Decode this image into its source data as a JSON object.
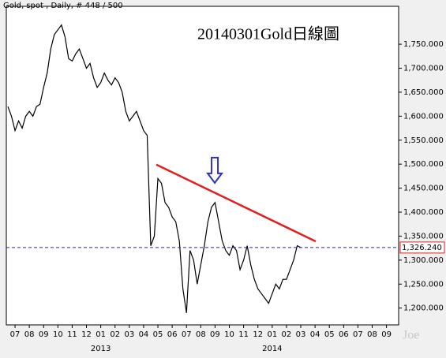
{
  "header": "Gold, spot , Daily, # 448 / 500",
  "watermark": "Joe",
  "chart_data": {
    "type": "line",
    "title": "20140301Gold日線圖",
    "color": "#000000",
    "x": [
      -0.5,
      -0.25,
      0,
      0.25,
      0.5,
      0.75,
      1,
      1.25,
      1.5,
      1.75,
      2,
      2.25,
      2.5,
      2.75,
      3,
      3.25,
      3.5,
      3.75,
      4,
      4.25,
      4.5,
      4.75,
      5,
      5.25,
      5.5,
      5.75,
      6,
      6.25,
      6.5,
      6.75,
      7,
      7.25,
      7.5,
      7.75,
      8,
      8.25,
      8.5,
      8.75,
      9,
      9.25,
      9.5,
      9.75,
      10,
      10.25,
      10.5,
      10.75,
      11,
      11.25,
      11.5,
      11.75,
      12,
      12.25,
      12.5,
      12.75,
      13,
      13.25,
      13.5,
      13.75,
      14,
      14.25,
      14.5,
      14.75,
      15,
      15.25,
      15.5,
      15.75,
      16,
      16.25,
      16.5,
      16.75,
      17,
      17.25,
      17.5,
      17.75,
      18,
      18.25,
      18.5,
      18.75,
      19,
      19.25,
      19.5,
      19.75,
      20
    ],
    "values": [
      1620,
      1600,
      1570,
      1590,
      1575,
      1600,
      1610,
      1600,
      1620,
      1625,
      1660,
      1690,
      1740,
      1770,
      1780,
      1790,
      1765,
      1720,
      1715,
      1730,
      1740,
      1720,
      1700,
      1710,
      1680,
      1660,
      1670,
      1690,
      1675,
      1665,
      1680,
      1670,
      1650,
      1610,
      1590,
      1600,
      1610,
      1590,
      1570,
      1560,
      1330,
      1350,
      1470,
      1460,
      1420,
      1410,
      1390,
      1380,
      1340,
      1240,
      1190,
      1320,
      1300,
      1250,
      1290,
      1330,
      1380,
      1410,
      1420,
      1380,
      1340,
      1320,
      1310,
      1330,
      1320,
      1280,
      1300,
      1330,
      1290,
      1260,
      1240,
      1230,
      1220,
      1210,
      1230,
      1250,
      1240,
      1260,
      1260,
      1280,
      1300,
      1330,
      1326.24
    ],
    "xlim": [
      -0.61,
      26.85
    ],
    "xticks": [
      {
        "value": 0,
        "label": "07"
      },
      {
        "value": 1,
        "label": "08"
      },
      {
        "value": 2,
        "label": "09"
      },
      {
        "value": 3,
        "label": "10"
      },
      {
        "value": 4,
        "label": "11"
      },
      {
        "value": 5,
        "label": "12"
      },
      {
        "value": 6,
        "label": "01"
      },
      {
        "value": 7,
        "label": "02"
      },
      {
        "value": 8,
        "label": "03"
      },
      {
        "value": 9,
        "label": "04"
      },
      {
        "value": 10,
        "label": "05"
      },
      {
        "value": 11,
        "label": "06"
      },
      {
        "value": 12,
        "label": "07"
      },
      {
        "value": 13,
        "label": "08"
      },
      {
        "value": 14,
        "label": "09"
      },
      {
        "value": 15,
        "label": "10"
      },
      {
        "value": 16,
        "label": "11"
      },
      {
        "value": 17,
        "label": "12"
      },
      {
        "value": 18,
        "label": "01"
      },
      {
        "value": 19,
        "label": "02"
      },
      {
        "value": 20,
        "label": "03"
      },
      {
        "value": 21,
        "label": "04"
      },
      {
        "value": 22,
        "label": "05"
      },
      {
        "value": 23,
        "label": "06"
      },
      {
        "value": 24,
        "label": "07"
      },
      {
        "value": 25,
        "label": "08"
      },
      {
        "value": 26,
        "label": "09"
      }
    ],
    "years": [
      {
        "value": 6,
        "label": "2013"
      },
      {
        "value": 18,
        "label": "2014"
      }
    ],
    "ylim": [
      1165,
      1829
    ],
    "yticks": [
      {
        "value": 1200,
        "label": "1,200.000"
      },
      {
        "value": 1250,
        "label": "1,250.000"
      },
      {
        "value": 1300,
        "label": "1,300.000"
      },
      {
        "value": 1350,
        "label": "1,350.000"
      },
      {
        "value": 1400,
        "label": "1,400.000"
      },
      {
        "value": 1450,
        "label": "1,450.000"
      },
      {
        "value": 1500,
        "label": "1,500.000"
      },
      {
        "value": 1550,
        "label": "1,550.000"
      },
      {
        "value": 1600,
        "label": "1,600.000"
      },
      {
        "value": 1650,
        "label": "1,650.000"
      },
      {
        "value": 1700,
        "label": "1,700.000"
      },
      {
        "value": 1750,
        "label": "1,750.000"
      }
    ],
    "last": {
      "value": 1326.24,
      "label": "1,326.240"
    },
    "trendline": {
      "x": [
        9.89,
        21.05
      ],
      "y": [
        1499,
        1339
      ],
      "color": "#e02020"
    },
    "arrow": {
      "x": 13.98,
      "y": 1461,
      "color": "#3030c0"
    }
  }
}
